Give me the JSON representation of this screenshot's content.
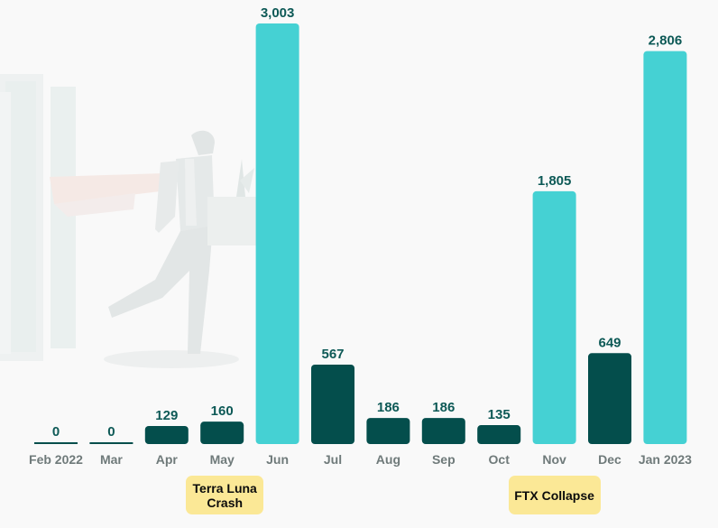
{
  "chart_data": {
    "type": "bar",
    "title": "",
    "xlabel": "",
    "ylabel": "",
    "categories": [
      "Feb 2022",
      "Mar",
      "Apr",
      "May",
      "Jun",
      "Jul",
      "Aug",
      "Sep",
      "Oct",
      "Nov",
      "Dec",
      "Jan 2023"
    ],
    "values": [
      0,
      0,
      129,
      160,
      3003,
      567,
      186,
      186,
      135,
      1805,
      649,
      2806
    ],
    "value_labels": [
      "0",
      "0",
      "129",
      "160",
      "3,003",
      "567",
      "186",
      "186",
      "135",
      "1,805",
      "649",
      "2,806"
    ],
    "highlight": [
      false,
      false,
      false,
      false,
      true,
      false,
      false,
      false,
      false,
      true,
      false,
      true
    ],
    "ylim": [
      0,
      3003
    ],
    "grid": false,
    "legend": "none",
    "colors": {
      "highlight": "#45d1d3",
      "normal": "#044e4c",
      "value_text": "#0d5956",
      "tick_text": "#6f7a7a",
      "annotation_bg": "#fbe896"
    },
    "annotations": [
      {
        "text": "Terra Luna\nCrash",
        "category": "May"
      },
      {
        "text": "FTX Collapse",
        "category": "Nov"
      }
    ]
  },
  "background": {
    "illustration": "person-leaving-office-with-box"
  }
}
